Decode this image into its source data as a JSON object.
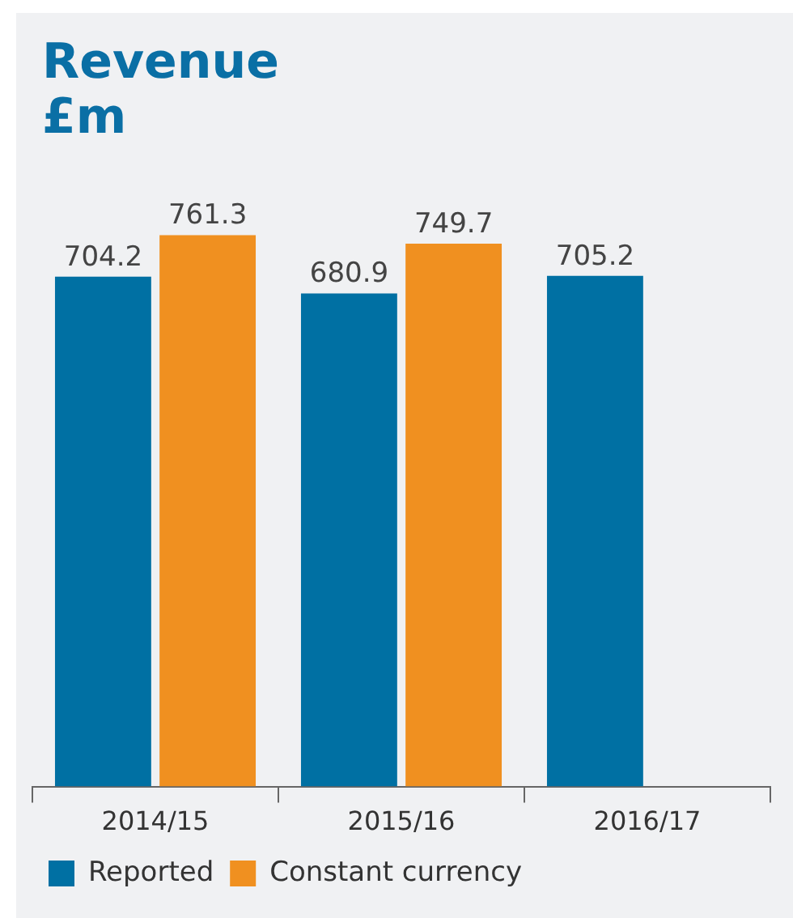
{
  "chart_data": {
    "type": "bar",
    "title": "Revenue £m",
    "categories": [
      "2014/15",
      "2015/16",
      "2016/17"
    ],
    "series": [
      {
        "name": "Reported",
        "color": "#0070a3",
        "values": [
          704.2,
          680.9,
          705.2
        ]
      },
      {
        "name": "Constant currency",
        "color": "#f09020",
        "values": [
          761.3,
          749.7,
          null
        ]
      }
    ],
    "tick_labels": "x",
    "data_labels": true,
    "legend": "bottom left",
    "grid": false
  }
}
